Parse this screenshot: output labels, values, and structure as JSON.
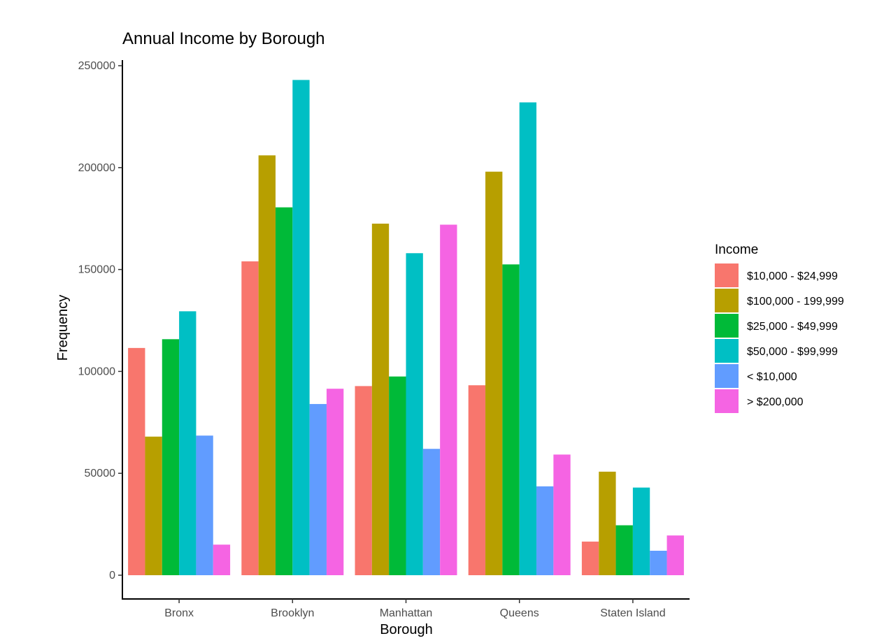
{
  "chart_data": {
    "type": "bar",
    "title": "Annual Income by Borough",
    "xlabel": "Borough",
    "ylabel": "Frequency",
    "categories": [
      "Bronx",
      "Brooklyn",
      "Manhattan",
      "Queens",
      "Staten Island"
    ],
    "ylim": [
      0,
      250000
    ],
    "yticks": [
      0,
      50000,
      100000,
      150000,
      200000,
      250000
    ],
    "ytick_labels": [
      "0",
      "50000",
      "100000",
      "150000",
      "200000",
      "250000"
    ],
    "grid": false,
    "legend": {
      "title": "Income",
      "placement": "right"
    },
    "series": [
      {
        "name": "$10,000 - $24,999",
        "color": "#F8766D",
        "values": [
          111500,
          154000,
          92800,
          93200,
          16500
        ]
      },
      {
        "name": "$100,000 - 199,999",
        "color": "#B79F00",
        "values": [
          68000,
          206000,
          172500,
          198000,
          50800
        ]
      },
      {
        "name": "$25,000 - $49,999",
        "color": "#00BA38",
        "values": [
          115800,
          180500,
          97500,
          152500,
          24500
        ]
      },
      {
        "name": "$50,000 - $99,999",
        "color": "#00BFC4",
        "values": [
          129500,
          243000,
          158000,
          232000,
          43000
        ]
      },
      {
        "name": "< $10,000",
        "color": "#619CFF",
        "values": [
          68500,
          84000,
          62000,
          43600,
          12000
        ]
      },
      {
        "name": "> $200,000",
        "color": "#F564E3",
        "values": [
          15000,
          91500,
          172000,
          59200,
          19500
        ]
      }
    ]
  }
}
